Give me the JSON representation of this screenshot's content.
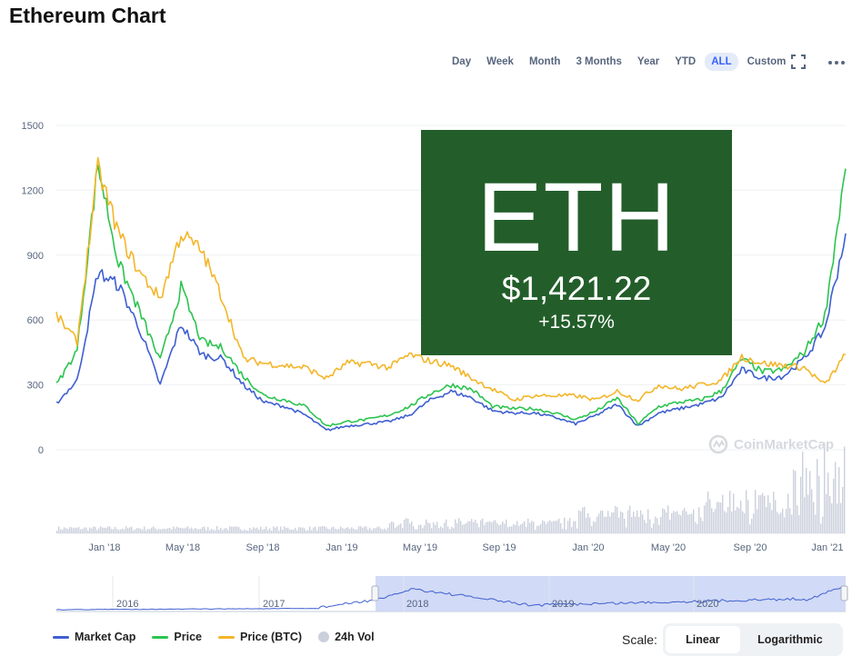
{
  "page": {
    "title": "Ethereum Chart"
  },
  "range_buttons": [
    "Day",
    "Week",
    "Month",
    "3 Months",
    "Year",
    "YTD",
    "ALL",
    "Custom"
  ],
  "range_active": "ALL",
  "icons": {
    "fullscreen": "fullscreen-icon",
    "more": "more-options-icon",
    "watermark": "coinmarketcap-logo"
  },
  "overlay": {
    "symbol": "ETH",
    "price": "$1,421.22",
    "change": "+15.57%",
    "background": "#235e2a"
  },
  "watermark": {
    "text": "CoinMarketCap"
  },
  "legend": [
    {
      "label": "Market Cap",
      "color": "#3e5fd1"
    },
    {
      "label": "Price",
      "color": "#2cc44f"
    },
    {
      "label": "Price (BTC)",
      "color": "#f3b62a"
    },
    {
      "label": "24h Vol",
      "color": "#cbd0dc"
    }
  ],
  "scale": {
    "label": "Scale:",
    "options": [
      "Linear",
      "Logarithmic"
    ],
    "active": "Linear"
  },
  "chart_data": {
    "type": "line",
    "title": "Ethereum Chart",
    "ylim": [
      0,
      1500
    ],
    "yticks": [
      0,
      300,
      600,
      900,
      1200,
      1500
    ],
    "x_tick_labels": [
      "Jan '18",
      "May '18",
      "Sep '18",
      "Jan '19",
      "May '19",
      "Sep '19",
      "Jan '20",
      "May '20",
      "Sep '20",
      "Jan '21"
    ],
    "navigator_labels": [
      "2016",
      "2017",
      "2018",
      "2019",
      "2020"
    ],
    "grid": true,
    "legend_position": "bottom-left",
    "x": [
      "2017-11",
      "2017-12",
      "2018-01",
      "2018-02",
      "2018-03",
      "2018-04",
      "2018-05",
      "2018-06",
      "2018-07",
      "2018-08",
      "2018-09",
      "2018-10",
      "2018-11",
      "2018-12",
      "2019-01",
      "2019-02",
      "2019-03",
      "2019-04",
      "2019-05",
      "2019-06",
      "2019-07",
      "2019-08",
      "2019-09",
      "2019-10",
      "2019-11",
      "2019-12",
      "2020-01",
      "2020-02",
      "2020-03",
      "2020-04",
      "2020-05",
      "2020-06",
      "2020-07",
      "2020-08",
      "2020-09",
      "2020-10",
      "2020-11",
      "2020-12",
      "2021-01"
    ],
    "series": [
      {
        "name": "Market Cap",
        "color": "#3e5fd1",
        "values": [
          215,
          320,
          820,
          760,
          560,
          300,
          580,
          440,
          420,
          300,
          220,
          200,
          160,
          90,
          110,
          120,
          130,
          160,
          230,
          270,
          240,
          180,
          170,
          170,
          150,
          120,
          160,
          210,
          110,
          170,
          190,
          210,
          240,
          370,
          330,
          340,
          420,
          560,
          1000
        ]
      },
      {
        "name": "Price",
        "color": "#2cc44f",
        "values": [
          300,
          460,
          1320,
          860,
          640,
          410,
          750,
          500,
          470,
          340,
          250,
          230,
          200,
          110,
          130,
          140,
          160,
          200,
          260,
          300,
          280,
          200,
          190,
          190,
          170,
          140,
          180,
          240,
          120,
          200,
          220,
          230,
          270,
          420,
          360,
          370,
          450,
          620,
          1300
        ]
      },
      {
        "name": "Price (BTC)",
        "color": "#f3b62a",
        "values": [
          620,
          500,
          1300,
          1000,
          820,
          700,
          1000,
          920,
          700,
          420,
          400,
          390,
          380,
          330,
          400,
          400,
          380,
          440,
          410,
          390,
          330,
          280,
          230,
          250,
          250,
          250,
          230,
          270,
          230,
          300,
          280,
          300,
          320,
          430,
          400,
          390,
          380,
          300,
          440
        ]
      }
    ]
  }
}
